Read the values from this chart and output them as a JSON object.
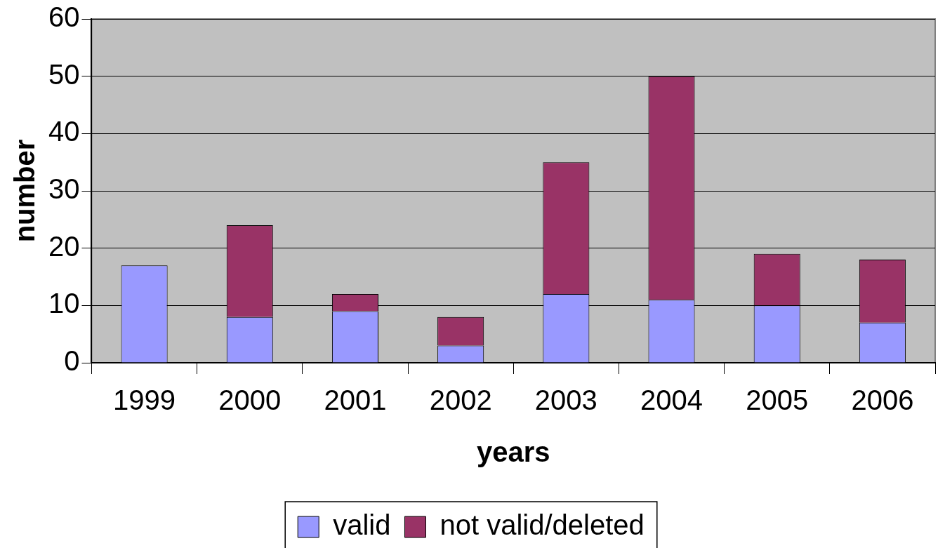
{
  "chart_data": {
    "type": "bar",
    "stacked": true,
    "xlabel": "years",
    "ylabel": "number",
    "categories": [
      "1999",
      "2000",
      "2001",
      "2002",
      "2003",
      "2004",
      "2005",
      "2006"
    ],
    "series": [
      {
        "name": "valid",
        "color": "#9999ff",
        "values": [
          17,
          8,
          9,
          3,
          12,
          11,
          10,
          7
        ]
      },
      {
        "name": "not valid/deleted",
        "color": "#993366",
        "values": [
          0,
          16,
          3,
          5,
          23,
          39,
          9,
          11
        ]
      }
    ],
    "ylim": [
      0,
      60
    ],
    "yticks": [
      0,
      10,
      20,
      30,
      40,
      50,
      60
    ],
    "grid": "y",
    "legend": "bottom"
  }
}
